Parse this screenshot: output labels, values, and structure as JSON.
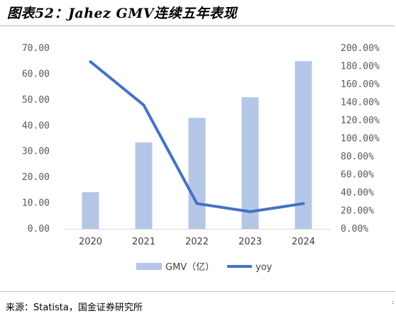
{
  "title": "图表52：Jahez GMV连续五年表现",
  "source": "来源：Statista，国金证券研究所",
  "corner_mark": ":",
  "chart_data": {
    "type": "bar",
    "categories": [
      "2020",
      "2021",
      "2022",
      "2023",
      "2024"
    ],
    "series": [
      {
        "name": "GMV（亿）",
        "type": "bar",
        "axis": "left",
        "color": "#b4c7e7",
        "values": [
          14.2,
          33.5,
          43.0,
          51.0,
          65.0
        ]
      },
      {
        "name": "yoy",
        "type": "line",
        "axis": "right",
        "color": "#4472c4",
        "values": [
          1.85,
          1.37,
          0.28,
          0.19,
          0.28
        ]
      }
    ],
    "y_left": {
      "ylim": [
        0,
        70
      ],
      "ticks": [
        "0.00",
        "10.00",
        "20.00",
        "30.00",
        "40.00",
        "50.00",
        "60.00",
        "70.00"
      ]
    },
    "y_right": {
      "ylim": [
        0,
        2
      ],
      "ticks": [
        "0.00%",
        "20.00%",
        "40.00%",
        "60.00%",
        "80.00%",
        "100.00%",
        "120.00%",
        "140.00%",
        "160.00%",
        "180.00%",
        "200.00%"
      ]
    },
    "grid": false,
    "legend_position": "bottom"
  }
}
